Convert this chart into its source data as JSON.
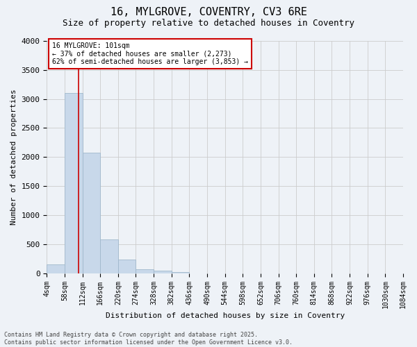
{
  "title1": "16, MYLGROVE, COVENTRY, CV3 6RE",
  "title2": "Size of property relative to detached houses in Coventry",
  "xlabel": "Distribution of detached houses by size in Coventry",
  "ylabel": "Number of detached properties",
  "bar_values": [
    150,
    3100,
    2080,
    580,
    230,
    70,
    40,
    20,
    0,
    0,
    0,
    0,
    0,
    0,
    0,
    0,
    0,
    0,
    0,
    0
  ],
  "categories": [
    "4sqm",
    "58sqm",
    "112sqm",
    "166sqm",
    "220sqm",
    "274sqm",
    "328sqm",
    "382sqm",
    "436sqm",
    "490sqm",
    "544sqm",
    "598sqm",
    "652sqm",
    "706sqm",
    "760sqm",
    "814sqm",
    "868sqm",
    "922sqm",
    "976sqm",
    "1030sqm",
    "1084sqm"
  ],
  "bar_color": "#c8d8ea",
  "bar_edgecolor": "#a0b8cc",
  "vline_x": 1.78,
  "vline_color": "#cc0000",
  "ylim": [
    0,
    4000
  ],
  "yticks": [
    0,
    500,
    1000,
    1500,
    2000,
    2500,
    3000,
    3500,
    4000
  ],
  "grid_color": "#cccccc",
  "bg_color": "#eef2f7",
  "annotation_text": "16 MYLGROVE: 101sqm\n← 37% of detached houses are smaller (2,273)\n62% of semi-detached houses are larger (3,853) →",
  "annotation_box_color": "#ffffff",
  "annotation_box_edgecolor": "#cc0000",
  "footer": "Contains HM Land Registry data © Crown copyright and database right 2025.\nContains public sector information licensed under the Open Government Licence v3.0.",
  "title_fontsize": 11,
  "subtitle_fontsize": 9,
  "tick_fontsize": 7,
  "ylabel_fontsize": 8,
  "xlabel_fontsize": 8,
  "footer_fontsize": 6,
  "annot_fontsize": 7
}
